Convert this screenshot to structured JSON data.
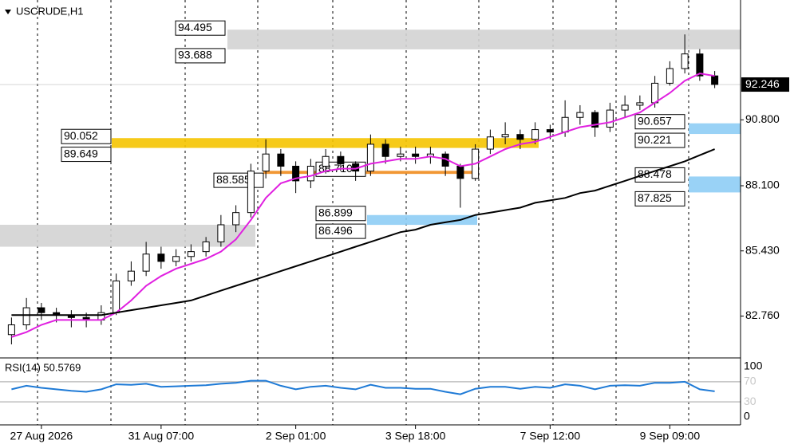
{
  "chart_data": {
    "type": "candlestick",
    "title": "USCRUDE,H1",
    "categories": [
      null,
      null,
      "27 Aug 2026",
      null,
      null,
      null,
      null,
      null,
      null,
      null,
      "31 Aug 07:00",
      null,
      null,
      null,
      null,
      null,
      null,
      null,
      null,
      "2 Sep 01:00",
      null,
      null,
      null,
      null,
      null,
      null,
      null,
      "3 Sep 18:00",
      null,
      null,
      null,
      null,
      null,
      null,
      null,
      null,
      "7 Sep 12:00",
      null,
      null,
      null,
      null,
      null,
      null,
      null,
      "9 Sep 09:00",
      null,
      null,
      null
    ],
    "open": [
      82.0,
      82.4,
      83.1,
      82.9,
      82.8,
      82.7,
      82.6,
      82.9,
      84.2,
      84.6,
      85.3,
      85.0,
      85.2,
      85.4,
      85.8,
      86.5,
      87.0,
      88.7,
      89.4,
      88.9,
      88.3,
      88.9,
      89.3,
      89.0,
      88.7,
      89.8,
      89.3,
      89.4,
      89.3,
      89.4,
      88.9,
      88.4,
      89.6,
      90.1,
      90.2,
      90.0,
      90.4,
      90.3,
      90.9,
      91.1,
      90.5,
      91.2,
      91.4,
      91.5,
      92.3,
      92.9,
      93.5,
      92.6
    ],
    "high": [
      82.7,
      83.5,
      83.3,
      83.1,
      83.0,
      82.9,
      83.2,
      84.5,
      85.0,
      85.8,
      85.6,
      85.5,
      85.7,
      86.0,
      86.9,
      87.3,
      89.0,
      90.0,
      89.6,
      89.1,
      89.2,
      89.6,
      89.5,
      89.1,
      90.2,
      90.0,
      89.7,
      89.7,
      89.7,
      89.5,
      89.0,
      89.8,
      90.4,
      90.7,
      90.4,
      90.7,
      90.6,
      91.6,
      91.4,
      91.2,
      91.5,
      91.8,
      91.8,
      92.6,
      93.2,
      94.3,
      93.7,
      92.8
    ],
    "low": [
      81.6,
      82.2,
      82.6,
      82.5,
      82.3,
      82.3,
      82.4,
      82.8,
      84.0,
      84.4,
      84.7,
      84.8,
      85.0,
      85.2,
      85.6,
      86.2,
      86.8,
      88.4,
      88.5,
      87.8,
      88.0,
      88.6,
      88.7,
      88.3,
      88.5,
      89.0,
      89.1,
      89.0,
      89.0,
      88.5,
      87.2,
      88.3,
      89.4,
      89.8,
      89.6,
      89.8,
      90.0,
      90.1,
      90.6,
      90.1,
      90.3,
      90.9,
      91.2,
      91.3,
      92.2,
      92.7,
      92.4,
      92.1
    ],
    "close": [
      82.4,
      83.1,
      82.9,
      82.8,
      82.7,
      82.6,
      82.9,
      84.2,
      84.6,
      85.3,
      85.0,
      85.2,
      85.4,
      85.8,
      86.5,
      87.0,
      88.7,
      89.4,
      88.9,
      88.3,
      88.9,
      89.3,
      89.0,
      88.7,
      89.8,
      89.3,
      89.4,
      89.3,
      89.4,
      88.9,
      88.4,
      89.6,
      90.1,
      90.2,
      90.0,
      90.4,
      90.3,
      90.9,
      91.1,
      90.5,
      91.2,
      91.4,
      91.5,
      92.3,
      92.9,
      93.5,
      92.6,
      92.25
    ],
    "overlays": [
      {
        "color": "#e020e0",
        "values": [
          81.9,
          82.1,
          82.4,
          82.6,
          82.6,
          82.6,
          82.6,
          82.9,
          83.4,
          84.0,
          84.4,
          84.7,
          84.9,
          85.1,
          85.4,
          85.9,
          86.7,
          87.6,
          88.2,
          88.4,
          88.5,
          88.7,
          88.8,
          88.8,
          89.0,
          89.1,
          89.2,
          89.2,
          89.3,
          89.2,
          88.9,
          89.0,
          89.3,
          89.6,
          89.8,
          89.9,
          90.1,
          90.3,
          90.5,
          90.6,
          90.7,
          90.9,
          91.1,
          91.5,
          91.9,
          92.4,
          92.7,
          92.6
        ]
      },
      {
        "color": "#000000",
        "values": [
          82.8,
          82.8,
          82.8,
          82.8,
          82.8,
          82.8,
          82.8,
          82.9,
          83.0,
          83.1,
          83.2,
          83.3,
          83.4,
          83.6,
          83.8,
          84.0,
          84.2,
          84.4,
          84.6,
          84.8,
          85.0,
          85.2,
          85.4,
          85.6,
          85.8,
          86.0,
          86.2,
          86.3,
          86.5,
          86.6,
          86.7,
          86.9,
          87.0,
          87.1,
          87.2,
          87.4,
          87.5,
          87.6,
          87.8,
          87.9,
          88.1,
          88.3,
          88.5,
          88.7,
          88.9,
          89.1,
          89.35,
          89.6
        ]
      }
    ],
    "zones": [
      {
        "top": 94.495,
        "bottom": 93.688,
        "color": "#d3d3d3",
        "labels": true
      },
      {
        "top": 86.5,
        "bottom": 85.6,
        "color": "#d3d3d3",
        "labels": false
      },
      {
        "top": 90.052,
        "bottom": 89.649,
        "color": "#f5c400",
        "labels": true
      },
      {
        "top": {
          "value": 88.71,
          "label": "88.710"
        },
        "bottom": 88.585,
        "color": "#f08c1e",
        "labels": true
      },
      {
        "top": 86.899,
        "bottom": 86.496,
        "color": "#8ecdf5",
        "labels": true
      },
      {
        "top": 90.657,
        "bottom": 90.221,
        "color": "#8ecdf5",
        "labels": true
      },
      {
        "top": 88.478,
        "bottom": 87.825,
        "color": "#8ecdf5",
        "labels": true
      }
    ],
    "last_price": 92.246,
    "ylim": [
      81.11,
      95.71
    ],
    "yticks": [
      {
        "value": 82.76,
        "label": "82.760"
      },
      {
        "value": 85.43,
        "label": "85.430"
      },
      {
        "value": 88.1,
        "label": "88.100"
      },
      {
        "value": 90.8,
        "label": "90.800"
      }
    ],
    "rsi": {
      "title": "RSI(14) 50.5769",
      "color": "#1e7ad6",
      "values": [
        55,
        62,
        58,
        55,
        52,
        50,
        55,
        65,
        64,
        66,
        60,
        61,
        62,
        63,
        66,
        68,
        72,
        72,
        62,
        55,
        60,
        62,
        58,
        55,
        64,
        58,
        58,
        56,
        56,
        50,
        45,
        56,
        60,
        60,
        56,
        60,
        58,
        65,
        62,
        55,
        62,
        63,
        62,
        68,
        68,
        70,
        55,
        51
      ],
      "ylim": [
        0,
        100
      ],
      "yticks": [
        100,
        70,
        30,
        0
      ],
      "levels": [
        70,
        30
      ]
    }
  }
}
